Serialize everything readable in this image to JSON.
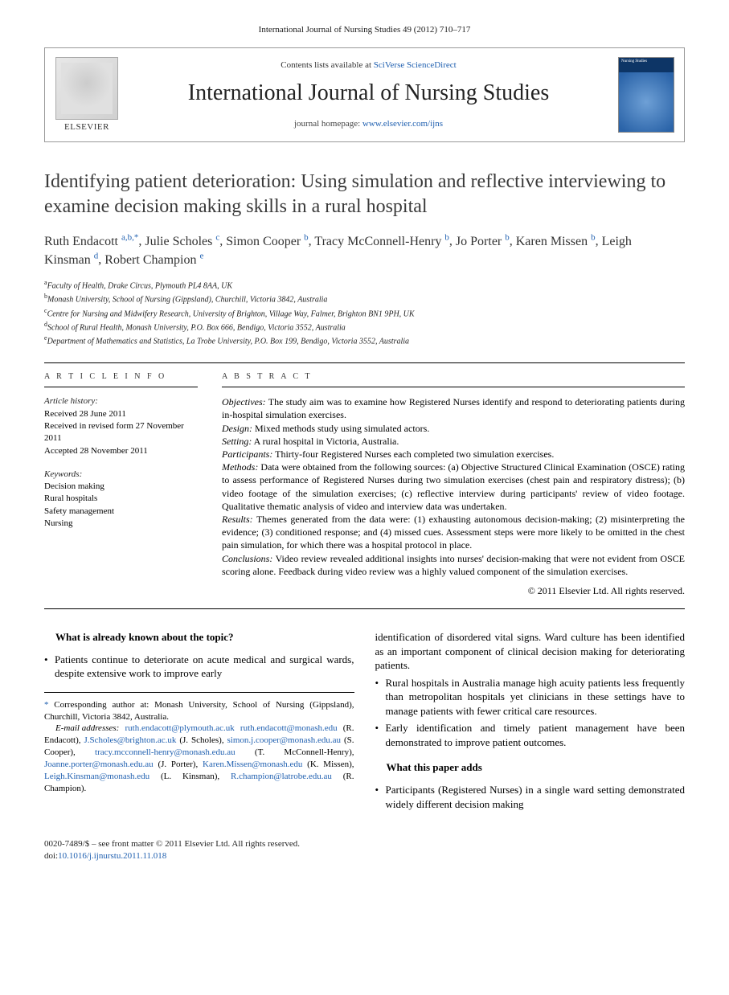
{
  "runningHead": "International Journal of Nursing Studies 49 (2012) 710–717",
  "masthead": {
    "contentsLine": "Contents lists available at",
    "contentsLink": "SciVerse ScienceDirect",
    "journalName": "International Journal of Nursing Studies",
    "homepagePrefix": "journal homepage:",
    "homepageUrl": "www.elsevier.com/ijns",
    "publisher": "ELSEVIER",
    "coverLabel": "Nursing Studies"
  },
  "title": "Identifying patient deterioration: Using simulation and reflective interviewing to examine decision making skills in a rural hospital",
  "authorsHtmlParts": [
    {
      "name": "Ruth Endacott",
      "aff": "a,b,",
      "star": true
    },
    {
      "name": "Julie Scholes",
      "aff": "c"
    },
    {
      "name": "Simon Cooper",
      "aff": "b"
    },
    {
      "name": "Tracy McConnell-Henry",
      "aff": "b"
    },
    {
      "name": "Jo Porter",
      "aff": "b"
    },
    {
      "name": "Karen Missen",
      "aff": "b"
    },
    {
      "name": "Leigh Kinsman",
      "aff": "d"
    },
    {
      "name": "Robert Champion",
      "aff": "e"
    }
  ],
  "affiliations": [
    {
      "k": "a",
      "t": "Faculty of Health, Drake Circus, Plymouth PL4 8AA, UK"
    },
    {
      "k": "b",
      "t": "Monash University, School of Nursing (Gippsland), Churchill, Victoria 3842, Australia"
    },
    {
      "k": "c",
      "t": "Centre for Nursing and Midwifery Research, University of Brighton, Village Way, Falmer, Brighton BN1 9PH, UK"
    },
    {
      "k": "d",
      "t": "School of Rural Health, Monash University, P.O. Box 666, Bendigo, Victoria 3552, Australia"
    },
    {
      "k": "e",
      "t": "Department of Mathematics and Statistics, La Trobe University, P.O. Box 199, Bendigo, Victoria 3552, Australia"
    }
  ],
  "infoHead": "A R T I C L E   I N F O",
  "absHead": "A B S T R A C T",
  "history": {
    "label": "Article history:",
    "received": "Received 28 June 2011",
    "revised": "Received in revised form 27 November 2011",
    "accepted": "Accepted 28 November 2011"
  },
  "keywordsLabel": "Keywords:",
  "keywords": [
    "Decision making",
    "Rural hospitals",
    "Safety management",
    "Nursing"
  ],
  "abstract": {
    "objectivesLabel": "Objectives:",
    "objectives": " The study aim was to examine how Registered Nurses identify and respond to deteriorating patients during in-hospital simulation exercises.",
    "designLabel": "Design:",
    "design": " Mixed methods study using simulated actors.",
    "settingLabel": "Setting:",
    "setting": " A rural hospital in Victoria, Australia.",
    "participantsLabel": "Participants:",
    "participants": " Thirty-four Registered Nurses each completed two simulation exercises.",
    "methodsLabel": "Methods:",
    "methods": " Data were obtained from the following sources: (a) Objective Structured Clinical Examination (OSCE) rating to assess performance of Registered Nurses during two simulation exercises (chest pain and respiratory distress); (b) video footage of the simulation exercises; (c) reflective interview during participants' review of video footage. Qualitative thematic analysis of video and interview data was undertaken.",
    "resultsLabel": "Results:",
    "results": " Themes generated from the data were: (1) exhausting autonomous decision-making; (2) misinterpreting the evidence; (3) conditioned response; and (4) missed cues. Assessment steps were more likely to be omitted in the chest pain simulation, for which there was a hospital protocol in place.",
    "conclusionsLabel": "Conclusions:",
    "conclusions": " Video review revealed additional insights into nurses' decision-making that were not evident from OSCE scoring alone. Feedback during video review was a highly valued component of the simulation exercises."
  },
  "copyright": "© 2011 Elsevier Ltd. All rights reserved.",
  "body": {
    "q1": "What is already known about the topic?",
    "leftBullet1": "Patients continue to deteriorate on acute medical and surgical wards, despite extensive work to improve early",
    "rightCont": "identification of disordered vital signs. Ward culture has been identified as an important component of clinical decision making for deteriorating patients.",
    "rightBullet2": "Rural hospitals in Australia manage high acuity patients less frequently than metropolitan hospitals yet clinicians in these settings have to manage patients with fewer critical care resources.",
    "rightBullet3": "Early identification and timely patient management have been demonstrated to improve patient outcomes.",
    "q2": "What this paper adds",
    "rightBullet4": "Participants (Registered Nurses) in a single ward setting demonstrated widely different decision making"
  },
  "corr": {
    "label": "* Corresponding author at: Monash University, School of Nursing (Gippsland), Churchill, Victoria 3842, Australia.",
    "emailLabel": "E-mail addresses:",
    "emails": [
      {
        "e": "ruth.endacott@plymouth.ac.uk",
        "p": ""
      },
      {
        "e": "ruth.endacott@monash.edu",
        "p": " (R. Endacott),"
      },
      {
        "e": "J.Scholes@brighton.ac.uk",
        "p": " (J. Scholes),"
      },
      {
        "e": "simon.j.cooper@monash.edu.au",
        "p": " (S. Cooper),"
      },
      {
        "e": "tracy.mcconnell-henry@monash.edu.au",
        "p": " (T. McConnell-Henry),"
      },
      {
        "e": "Joanne.porter@monash.edu.au",
        "p": " (J. Porter),"
      },
      {
        "e": "Karen.Missen@monash.edu",
        "p": " (K. Missen),"
      },
      {
        "e": "Leigh.Kinsman@monash.edu",
        "p": " (L. Kinsman),"
      },
      {
        "e": "R.champion@latrobe.edu.au",
        "p": " (R. Champion)."
      }
    ]
  },
  "footer": {
    "issn": "0020-7489/$ – see front matter © 2011 Elsevier Ltd. All rights reserved.",
    "doiLabel": "doi:",
    "doi": "10.1016/j.ijnurstu.2011.11.018"
  }
}
